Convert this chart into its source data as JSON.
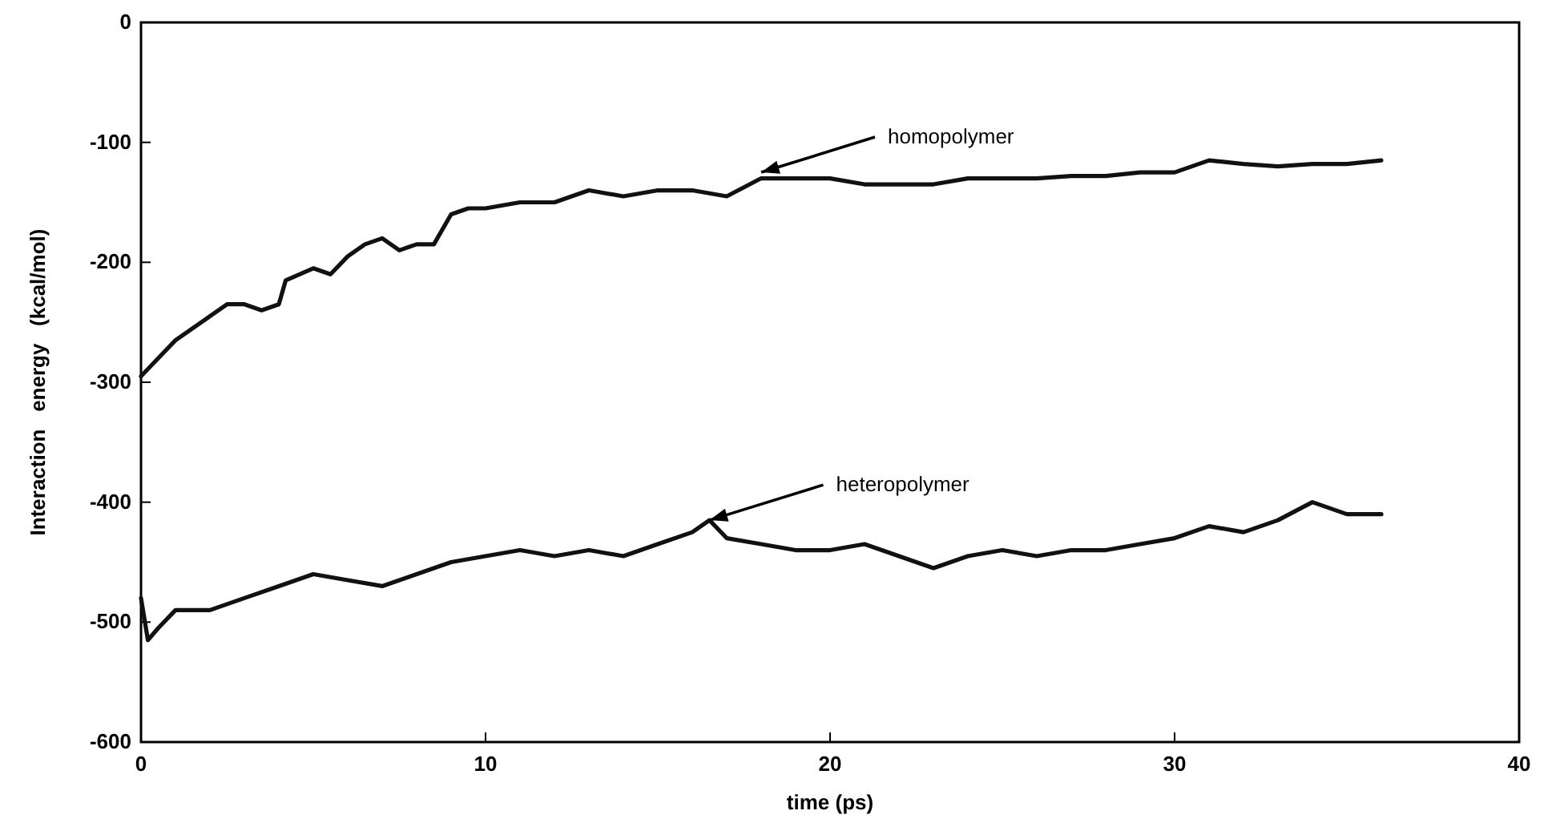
{
  "chart_data": {
    "type": "line",
    "xlabel": "time (ps)",
    "ylabel": "Interaction   energy   (kcal/mol)",
    "xlim": [
      0,
      40
    ],
    "ylim": [
      -600,
      0
    ],
    "xticks": [
      0,
      10,
      20,
      30,
      40
    ],
    "yticks": [
      -600,
      -500,
      -400,
      -300,
      -200,
      -100,
      0
    ],
    "grid": false,
    "line_style": "solid",
    "series": [
      {
        "color": "#111111",
        "x": [
          0,
          0.5,
          1,
          1.5,
          2,
          2.5,
          3,
          3.5,
          4,
          4.2,
          5,
          5.5,
          6,
          6.5,
          7,
          7.5,
          8,
          8.5,
          9,
          9.5,
          10,
          11,
          12,
          13,
          14,
          15,
          16,
          17,
          18,
          19,
          20,
          21,
          22,
          23,
          24,
          25,
          26,
          27,
          28,
          29,
          30,
          31,
          32,
          33,
          34,
          35,
          36
        ],
        "values": [
          -295,
          -280,
          -265,
          -255,
          -245,
          -235,
          -235,
          -240,
          -235,
          -215,
          -205,
          -210,
          -195,
          -185,
          -180,
          -190,
          -185,
          -185,
          -160,
          -155,
          -155,
          -150,
          -150,
          -140,
          -145,
          -140,
          -140,
          -145,
          -130,
          -130,
          -130,
          -135,
          -135,
          -135,
          -130,
          -130,
          -130,
          -128,
          -128,
          -125,
          -125,
          -115,
          -118,
          -120,
          -118,
          -118,
          -115
        ]
      },
      {
        "color": "#111111",
        "x": [
          0,
          0.2,
          0.5,
          1,
          2,
          3,
          4,
          5,
          6,
          7,
          8,
          9,
          10,
          11,
          12,
          13,
          14,
          15,
          16,
          16.5,
          17,
          18,
          19,
          20,
          21,
          22,
          23,
          24,
          25,
          26,
          27,
          28,
          29,
          30,
          31,
          32,
          33,
          34,
          35,
          36
        ],
        "values": [
          -480,
          -515,
          -505,
          -490,
          -490,
          -480,
          -470,
          -460,
          -465,
          -470,
          -460,
          -450,
          -445,
          -440,
          -445,
          -440,
          -445,
          -435,
          -425,
          -415,
          -430,
          -435,
          -440,
          -440,
          -435,
          -445,
          -455,
          -445,
          -440,
          -445,
          -440,
          -440,
          -435,
          -430,
          -420,
          -425,
          -415,
          -400,
          -410,
          -410
        ]
      }
    ],
    "annotations": [
      {
        "text": "homopolymer",
        "x": 18,
        "y": -125
      },
      {
        "text": "heteropolymer",
        "x": 16.5,
        "y": -415
      }
    ]
  }
}
